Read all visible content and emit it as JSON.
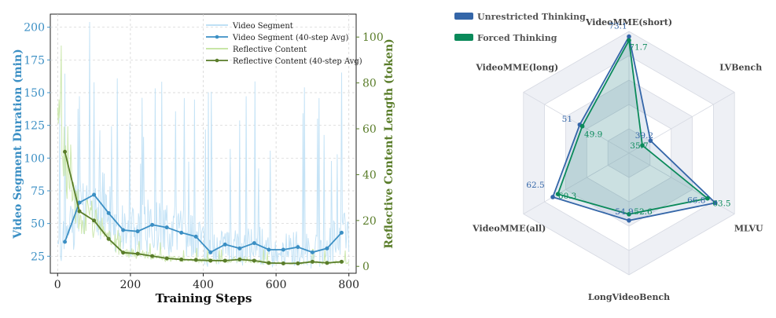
{
  "chart_data": [
    {
      "type": "line",
      "xlabel": "Training Steps",
      "ylabel": "Video Segment Duration (min)",
      "y2label": "Reflective Content Length (token)",
      "xlim": [
        -20,
        820
      ],
      "ylim": [
        12,
        210
      ],
      "y2lim": [
        -3,
        110
      ],
      "x_ticks": [
        0,
        200,
        400,
        600,
        800
      ],
      "y_ticks": [
        25,
        50,
        75,
        100,
        125,
        150,
        175,
        200
      ],
      "y2_ticks": [
        0,
        20,
        40,
        60,
        80,
        100
      ],
      "grid": true,
      "legend_position": "top-right",
      "legend": [
        "Video Segment",
        "Video Segment (40-step Avg)",
        "Reflective Content",
        "Reflective Content (40-step Avg)"
      ],
      "series": [
        {
          "name": "Video Segment (40-step Avg)",
          "axis": "left",
          "color": "#3b8fc4",
          "x": [
            20,
            60,
            100,
            140,
            180,
            220,
            260,
            300,
            340,
            380,
            420,
            460,
            500,
            540,
            580,
            620,
            660,
            700,
            740,
            780
          ],
          "values": [
            36,
            66,
            72,
            58,
            45,
            44,
            49,
            47,
            43,
            40,
            28,
            34,
            31,
            35,
            30,
            30,
            32,
            28,
            31,
            43
          ]
        },
        {
          "name": "Reflective Content (40-step Avg)",
          "axis": "right",
          "color": "#5a7d2a",
          "x": [
            20,
            60,
            100,
            140,
            180,
            220,
            260,
            300,
            340,
            380,
            420,
            460,
            500,
            540,
            580,
            620,
            660,
            700,
            740,
            780
          ],
          "values": [
            50,
            24,
            20,
            12,
            6,
            5.5,
            4.5,
            3.5,
            3,
            2.8,
            2.5,
            2.5,
            3,
            2.5,
            1.5,
            1.3,
            1.3,
            2,
            1.5,
            2
          ]
        }
      ],
      "colors": {
        "video_raw": "#bfe0f5",
        "reflective_raw": "#c8e6a6"
      }
    },
    {
      "type": "radar",
      "axes": [
        "VideoMME(short)",
        "LVBench",
        "MLVU",
        "LongVideoBench",
        "VideoMME(all)",
        "VideoMME(long)"
      ],
      "series": [
        {
          "name": "Unrestricted Thinking",
          "color": "#3466a8",
          "values": [
            73.1,
            39.2,
            66.8,
            54.9,
            62.5,
            51
          ]
        },
        {
          "name": "Forced Thinking",
          "color": "#0a8a5a",
          "values": [
            71.7,
            35.7,
            63.5,
            52.6,
            60.3,
            49.9
          ]
        }
      ],
      "value_labels": {
        "Unrestricted Thinking": [
          "73.1",
          "39.2",
          "66.8",
          "54.9",
          "62.5",
          "51"
        ],
        "Forced Thinking": [
          "71.7",
          "35.7",
          "63.5",
          "52.6",
          "60.3",
          "49.9"
        ]
      },
      "legend_position": "top-left"
    }
  ]
}
